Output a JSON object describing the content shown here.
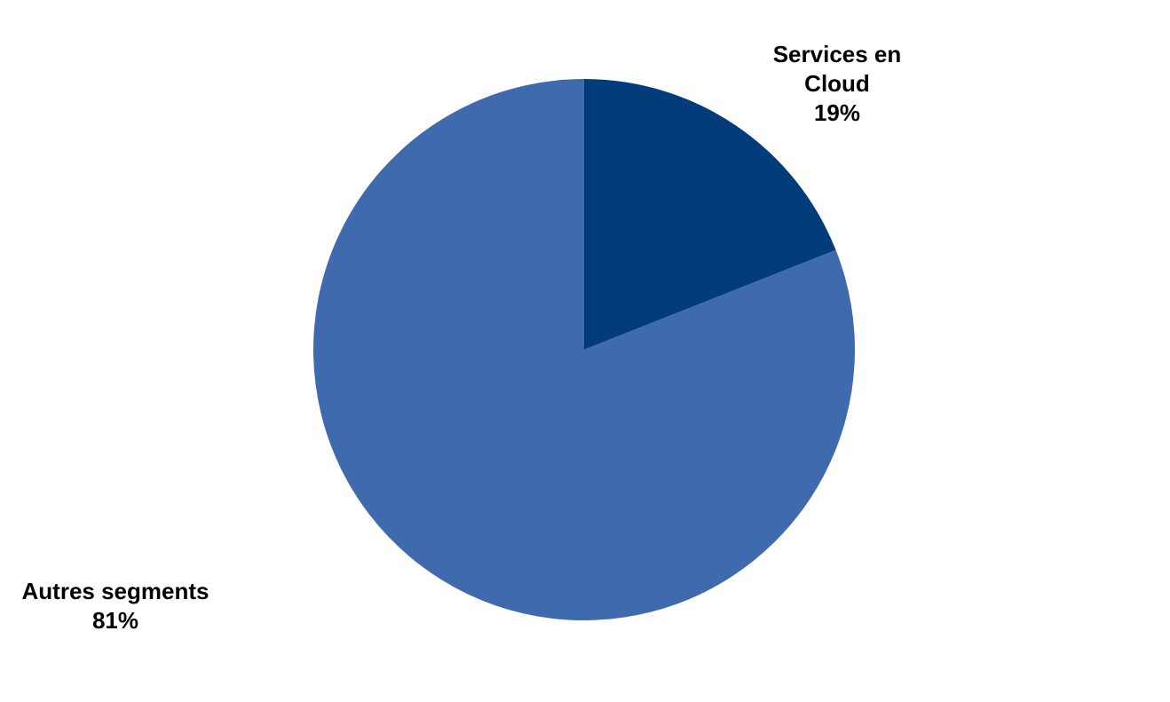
{
  "chart_data": {
    "type": "pie",
    "slices": [
      {
        "label_lines": [
          "Services en",
          "Cloud"
        ],
        "value": 19,
        "value_label": "19%",
        "color": "#033c7a"
      },
      {
        "label_lines": [
          "Autres segments"
        ],
        "value": 81,
        "value_label": "81%",
        "color": "#3f6aad"
      }
    ],
    "start_angle_deg": 0,
    "direction": "clockwise",
    "legend": "none",
    "data_labels": "outside"
  }
}
